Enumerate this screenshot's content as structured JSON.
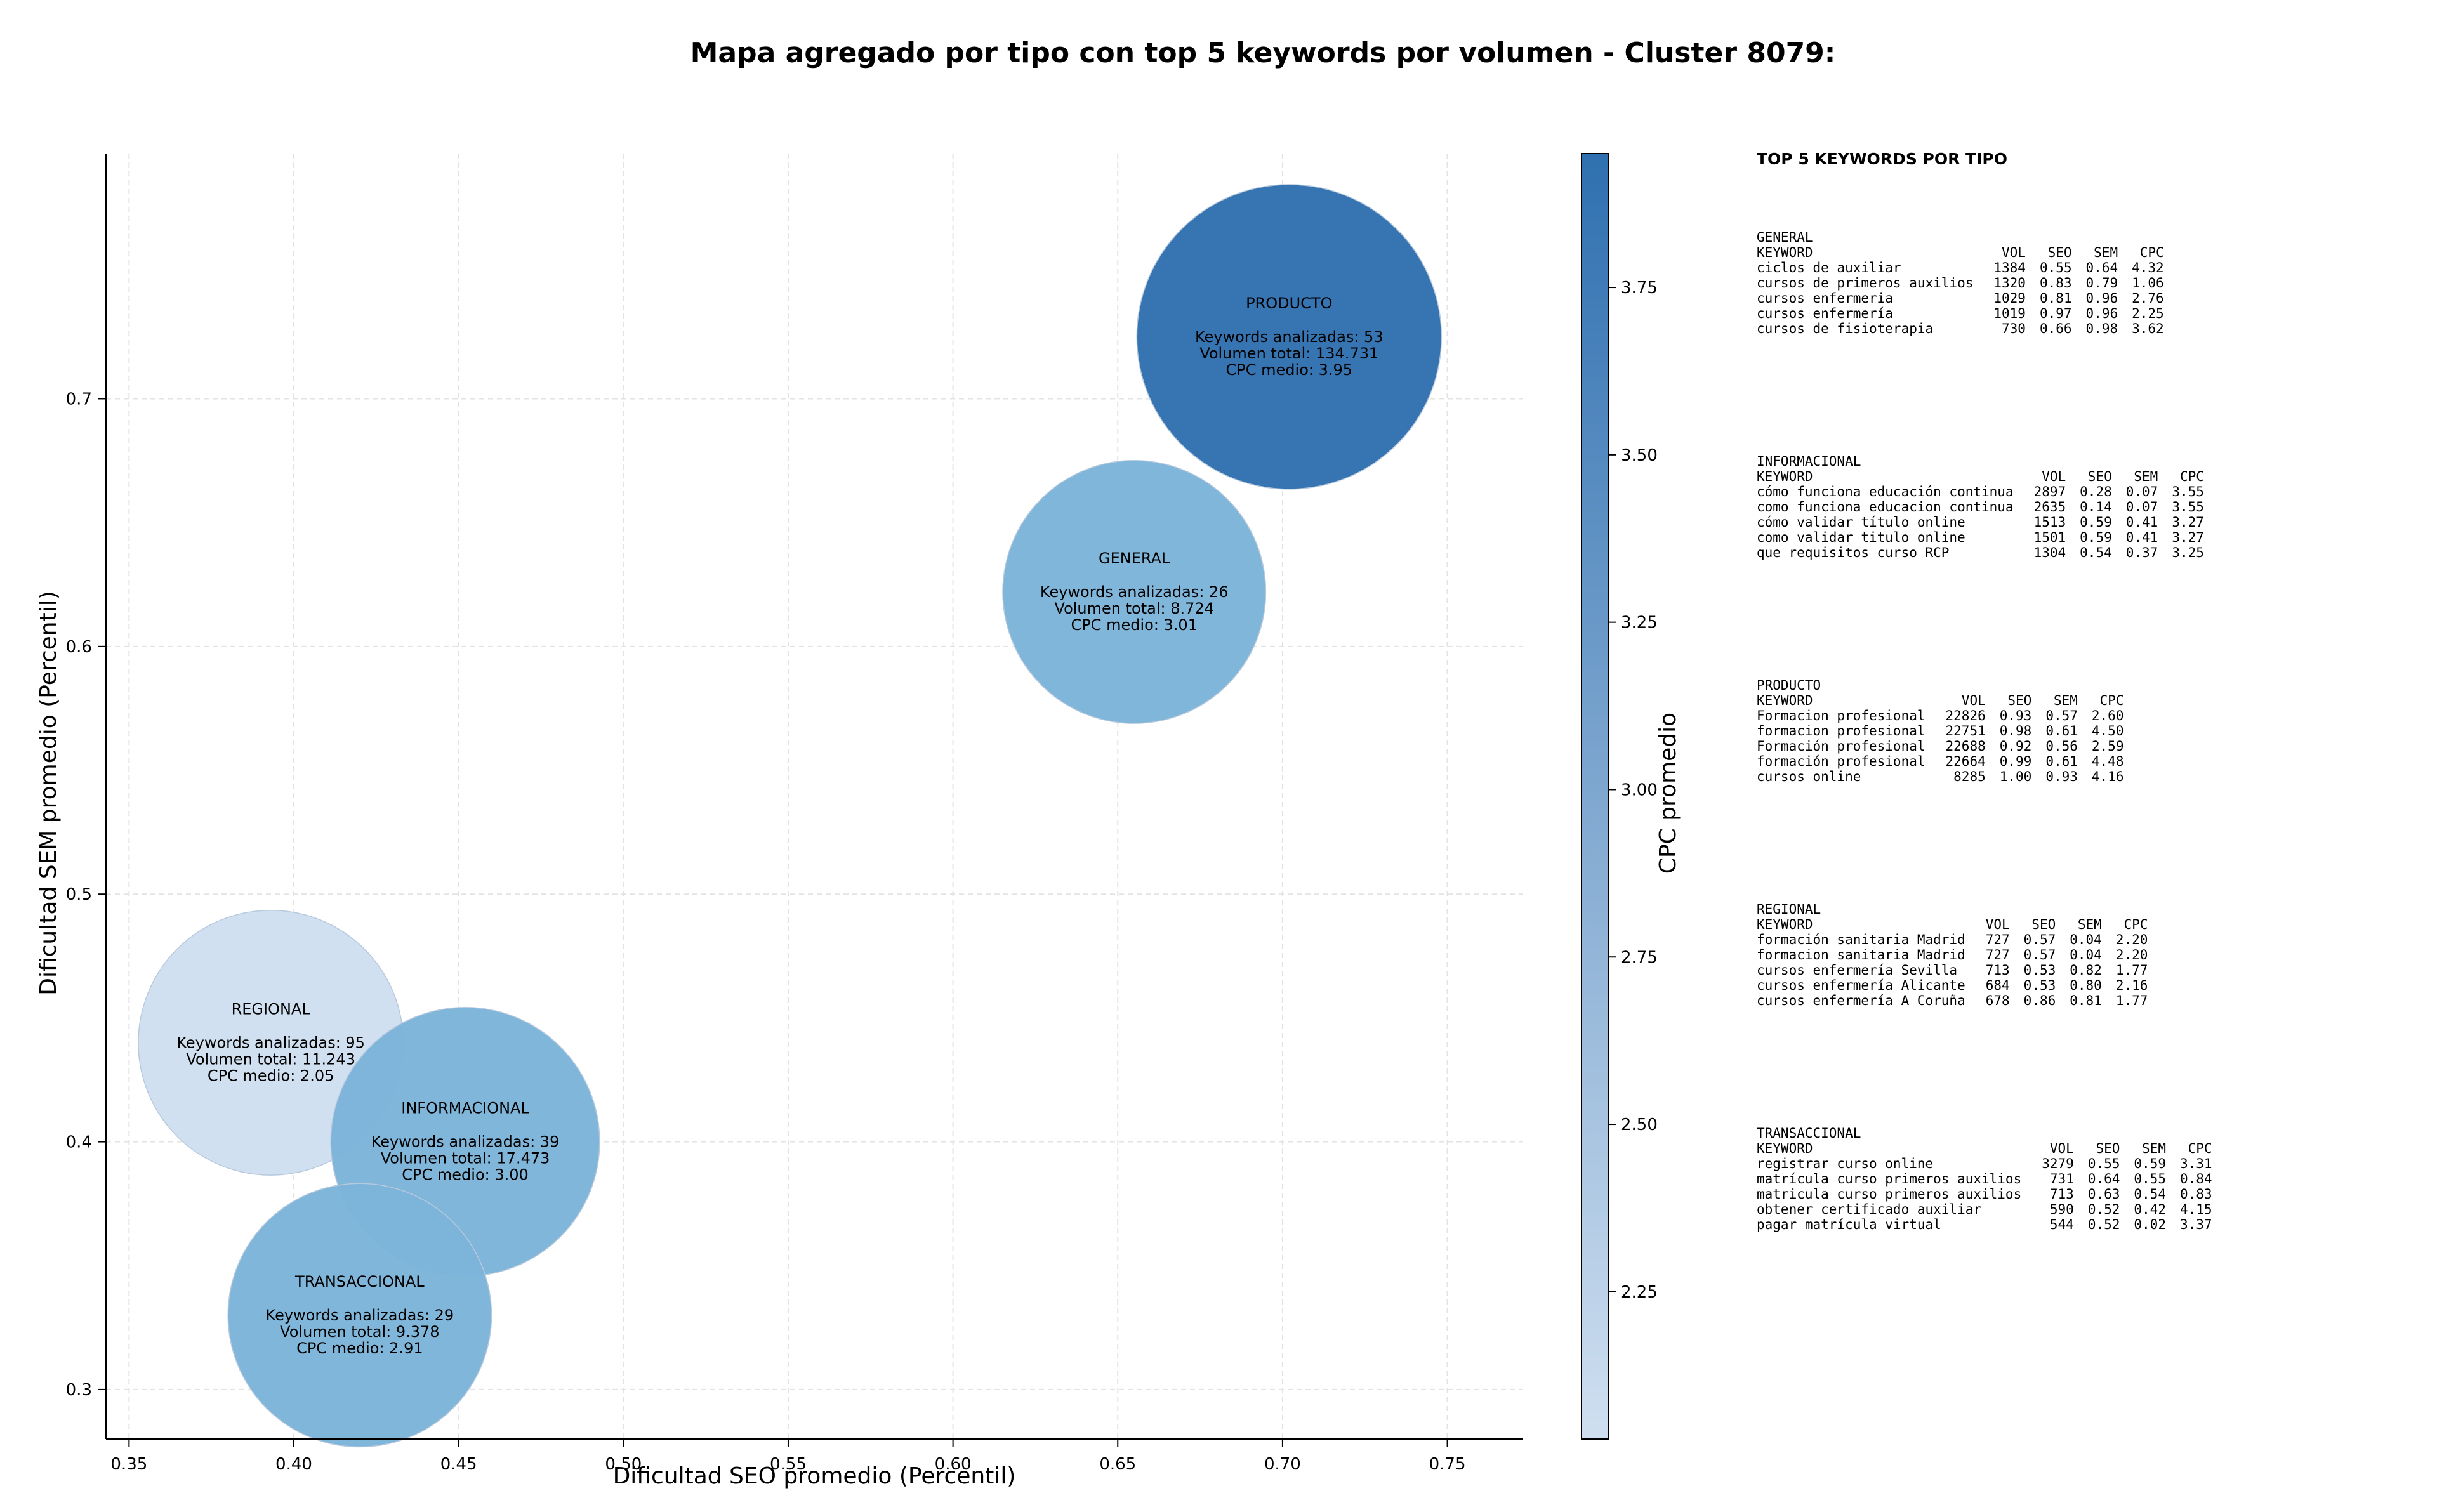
{
  "chart_data": {
    "type": "scatter",
    "title": "Mapa agregado por tipo con top 5 keywords por volumen - Cluster 8079:",
    "xlabel": "Dificultad SEO promedio (Percentil)",
    "ylabel": "Dificultad SEM promedio (Percentil)",
    "xlim": [
      0.343,
      0.773
    ],
    "ylim": [
      0.28,
      0.799
    ],
    "xticks": [
      "0.35",
      "0.40",
      "0.45",
      "0.50",
      "0.55",
      "0.60",
      "0.65",
      "0.70",
      "0.75"
    ],
    "yticks": [
      "0.3",
      "0.4",
      "0.5",
      "0.6",
      "0.7"
    ],
    "grid": true,
    "colorbar": {
      "label": "CPC promedio",
      "range": [
        2.03,
        3.95
      ],
      "ticks": [
        "2.25",
        "2.50",
        "2.75",
        "3.00",
        "3.25",
        "3.50",
        "3.75"
      ],
      "color_low": "#cfdff0",
      "color_high": "#2f70b0"
    },
    "points": [
      {
        "type_name": "PRODUCTO",
        "x": 0.702,
        "y": 0.725,
        "count_label": "Keywords analizadas: 53",
        "volume_label": "Volumen total: 134.731",
        "cpc_label": "CPC medio: 3.95",
        "cpc": 3.95,
        "volume": 134731,
        "color": "#2f70b0"
      },
      {
        "type_name": "GENERAL",
        "x": 0.655,
        "y": 0.622,
        "count_label": "Keywords analizadas: 26",
        "volume_label": "Volumen total: 8.724",
        "cpc_label": "CPC medio: 3.01",
        "cpc": 3.01,
        "volume": 8724,
        "color": "#7db4da"
      },
      {
        "type_name": "REGIONAL",
        "x": 0.393,
        "y": 0.44,
        "count_label": "Keywords analizadas: 95",
        "volume_label": "Volumen total: 11.243",
        "cpc_label": "CPC medio: 2.05",
        "cpc": 2.05,
        "volume": 11243,
        "color": "#cfdff0"
      },
      {
        "type_name": "INFORMACIONAL",
        "x": 0.452,
        "y": 0.4,
        "count_label": "Keywords analizadas: 39",
        "volume_label": "Volumen total: 17.473",
        "cpc_label": "CPC medio: 3.00",
        "cpc": 3.0,
        "volume": 17473,
        "color": "#7db4da"
      },
      {
        "type_name": "TRANSACCIONAL",
        "x": 0.42,
        "y": 0.33,
        "count_label": "Keywords analizadas: 29",
        "volume_label": "Volumen total: 9.378",
        "cpc_label": "CPC medio: 2.91",
        "cpc": 2.91,
        "volume": 9378,
        "color": "#7db4da"
      }
    ]
  },
  "side_panel": {
    "title": "TOP 5 KEYWORDS POR TIPO",
    "headers": {
      "keyword": "KEYWORD",
      "vol": "VOL",
      "seo": "SEO",
      "sem": "SEM",
      "cpc": "CPC"
    },
    "groups": [
      {
        "name": "GENERAL",
        "rows": [
          [
            "ciclos de auxiliar",
            "1384",
            "0.55",
            "0.64",
            "4.32"
          ],
          [
            "cursos de primeros auxilios",
            "1320",
            "0.83",
            "0.79",
            "1.06"
          ],
          [
            "cursos enfermeria",
            "1029",
            "0.81",
            "0.96",
            "2.76"
          ],
          [
            "cursos enfermería",
            "1019",
            "0.97",
            "0.96",
            "2.25"
          ],
          [
            "cursos de fisioterapia",
            "730",
            "0.66",
            "0.98",
            "3.62"
          ]
        ]
      },
      {
        "name": "INFORMACIONAL",
        "rows": [
          [
            "cómo funciona educación continua",
            "2897",
            "0.28",
            "0.07",
            "3.55"
          ],
          [
            "como funciona educacion continua",
            "2635",
            "0.14",
            "0.07",
            "3.55"
          ],
          [
            "cómo validar título online",
            "1513",
            "0.59",
            "0.41",
            "3.27"
          ],
          [
            "como validar titulo online",
            "1501",
            "0.59",
            "0.41",
            "3.27"
          ],
          [
            "que requisitos curso RCP",
            "1304",
            "0.54",
            "0.37",
            "3.25"
          ]
        ]
      },
      {
        "name": "PRODUCTO",
        "rows": [
          [
            "Formacion profesional",
            "22826",
            "0.93",
            "0.57",
            "2.60"
          ],
          [
            "formacion profesional",
            "22751",
            "0.98",
            "0.61",
            "4.50"
          ],
          [
            "Formación profesional",
            "22688",
            "0.92",
            "0.56",
            "2.59"
          ],
          [
            "formación profesional",
            "22664",
            "0.99",
            "0.61",
            "4.48"
          ],
          [
            "cursos online",
            "8285",
            "1.00",
            "0.93",
            "4.16"
          ]
        ]
      },
      {
        "name": "REGIONAL",
        "rows": [
          [
            "formación sanitaria Madrid",
            "727",
            "0.57",
            "0.04",
            "2.20"
          ],
          [
            "formacion sanitaria Madrid",
            "727",
            "0.57",
            "0.04",
            "2.20"
          ],
          [
            "cursos enfermería Sevilla",
            "713",
            "0.53",
            "0.82",
            "1.77"
          ],
          [
            "cursos enfermería Alicante",
            "684",
            "0.53",
            "0.80",
            "2.16"
          ],
          [
            "cursos enfermería A Coruña",
            "678",
            "0.86",
            "0.81",
            "1.77"
          ]
        ]
      },
      {
        "name": "TRANSACCIONAL",
        "rows": [
          [
            "registrar curso online",
            "3279",
            "0.55",
            "0.59",
            "3.31"
          ],
          [
            "matrícula curso primeros auxilios",
            "731",
            "0.64",
            "0.55",
            "0.84"
          ],
          [
            "matricula curso primeros auxilios",
            "713",
            "0.63",
            "0.54",
            "0.83"
          ],
          [
            "obtener certificado auxiliar",
            "590",
            "0.52",
            "0.42",
            "4.15"
          ],
          [
            "pagar matrícula virtual",
            "544",
            "0.52",
            "0.02",
            "3.37"
          ]
        ]
      }
    ]
  }
}
